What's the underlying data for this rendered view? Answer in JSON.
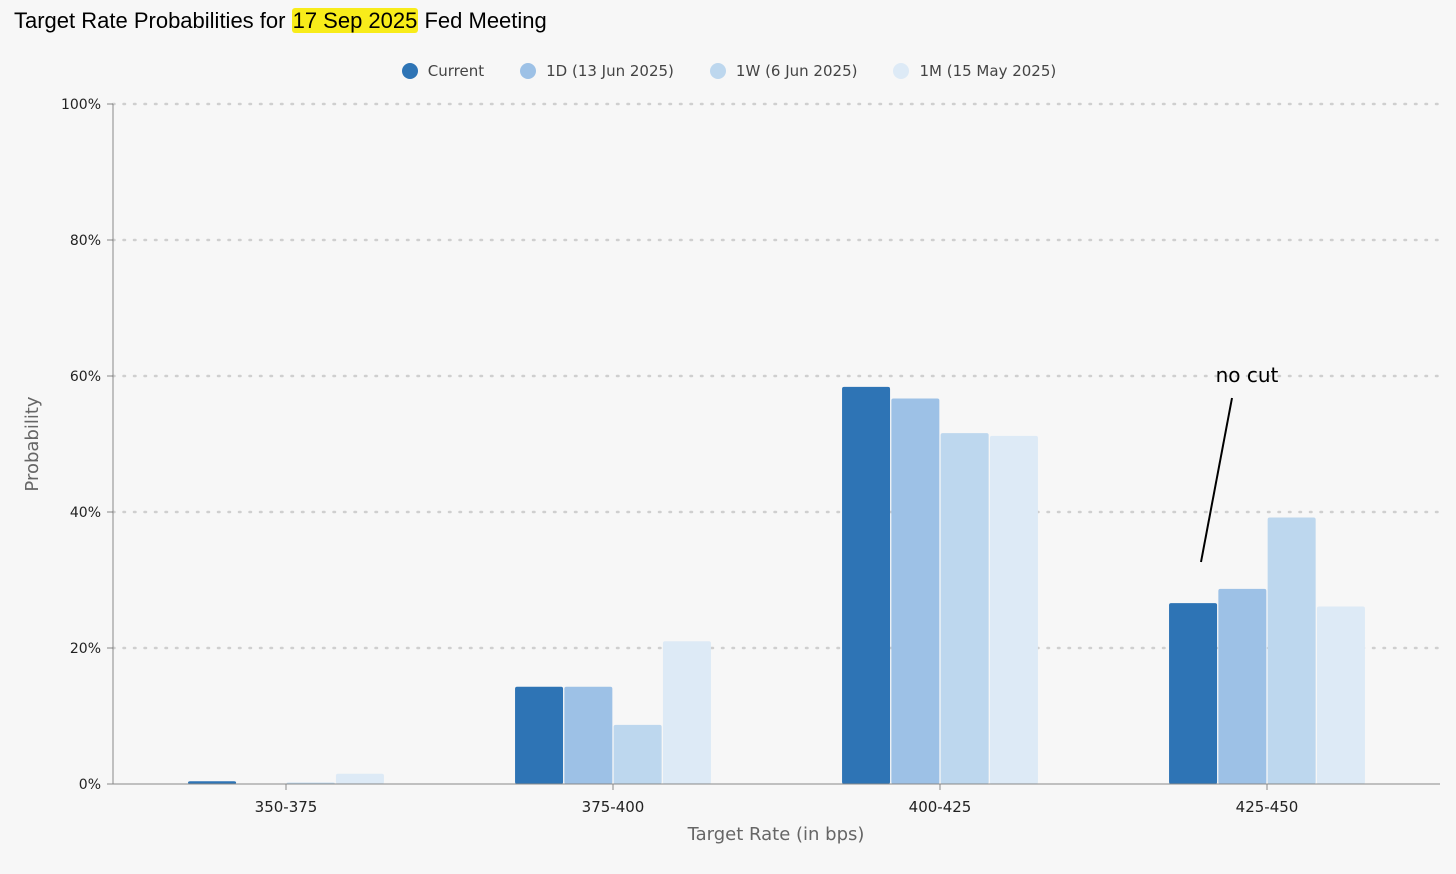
{
  "title": {
    "prefix": "Target Rate Probabilities for ",
    "highlight": "17 Sep 2025",
    "suffix": " Fed Meeting",
    "highlight_color": "#f8ec1a"
  },
  "chart_data": {
    "type": "bar",
    "xlabel": "Target Rate (in bps)",
    "ylabel": "Probability",
    "ylim": [
      0,
      100
    ],
    "yticks": [
      "0%",
      "20%",
      "40%",
      "60%",
      "80%",
      "100%"
    ],
    "ytick_values": [
      0,
      20,
      40,
      60,
      80,
      100
    ],
    "grid": true,
    "legend_position": "top-center",
    "categories": [
      "350-375",
      "375-400",
      "400-425",
      "425-450"
    ],
    "series": [
      {
        "name": "Current",
        "color": "#2e74b5",
        "values": [
          0.4,
          14.3,
          58.4,
          26.6
        ]
      },
      {
        "name": "1D (13 Jun 2025)",
        "color": "#9dc1e6",
        "values": [
          0.0,
          14.3,
          56.7,
          28.7
        ]
      },
      {
        "name": "1W (6 Jun 2025)",
        "color": "#bdd7ee",
        "values": [
          0.2,
          8.7,
          51.6,
          39.2
        ]
      },
      {
        "name": "1M (15 May 2025)",
        "color": "#ddeaf6",
        "values": [
          1.5,
          21.0,
          51.2,
          26.1
        ]
      }
    ],
    "annotation": {
      "text": "no cut",
      "category": "425-450"
    }
  }
}
